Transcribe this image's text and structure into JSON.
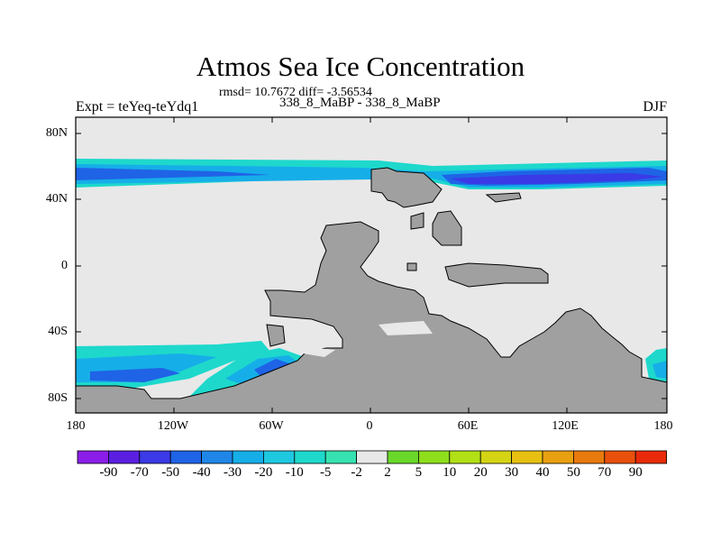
{
  "title": "Atmos Sea Ice Concentration",
  "stats": "rmsd= 10.7672 diff= -3.56534",
  "experiment": "Expt = teYeq-teYdq1",
  "period": "338_8_MaBP - 338_8_MaBP",
  "season": "DJF",
  "lat_ticks": [
    "80N",
    "40N",
    "0",
    "40S",
    "80S"
  ],
  "lon_ticks": [
    "180",
    "120W",
    "60W",
    "0",
    "60E",
    "120E",
    "180"
  ],
  "colorbar": {
    "labels": [
      "-90",
      "-70",
      "-50",
      "-40",
      "-30",
      "-20",
      "-10",
      "-5",
      "-2",
      "2",
      "5",
      "10",
      "20",
      "30",
      "40",
      "50",
      "70",
      "90"
    ],
    "colors": [
      "#8a1ee8",
      "#5b1fe0",
      "#3a3ae6",
      "#1f63e6",
      "#1f86e8",
      "#16aee8",
      "#1ec8e0",
      "#1ed8cc",
      "#36e2b0",
      "#e8e8e8",
      "#6ad82a",
      "#8ede1c",
      "#b2e016",
      "#d4d414",
      "#e8c012",
      "#e8a010",
      "#e87a0e",
      "#e8500c",
      "#e82a0a"
    ]
  },
  "map_colors": {
    "background": "#e8e8e8",
    "land": "#a0a0a0",
    "ice_light": "#1ed8cc",
    "ice_mid": "#16aee8",
    "ice_strong": "#1f63e6",
    "ice_deep": "#3a3ae6",
    "ice_max": "#5b1fe0"
  }
}
